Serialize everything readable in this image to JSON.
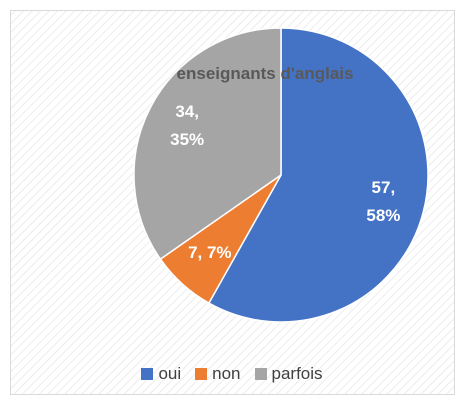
{
  "chart_data": {
    "type": "pie",
    "title": "enseignants d'anglais",
    "categories": [
      "oui",
      "non",
      "parfois"
    ],
    "values": [
      57,
      7,
      34
    ],
    "value_labels": [
      "57, 58%",
      "7, 7%",
      "34, 35%"
    ],
    "colors": [
      "#4472c4",
      "#ed7d31",
      "#a5a5a5"
    ],
    "legend": "bottom"
  }
}
